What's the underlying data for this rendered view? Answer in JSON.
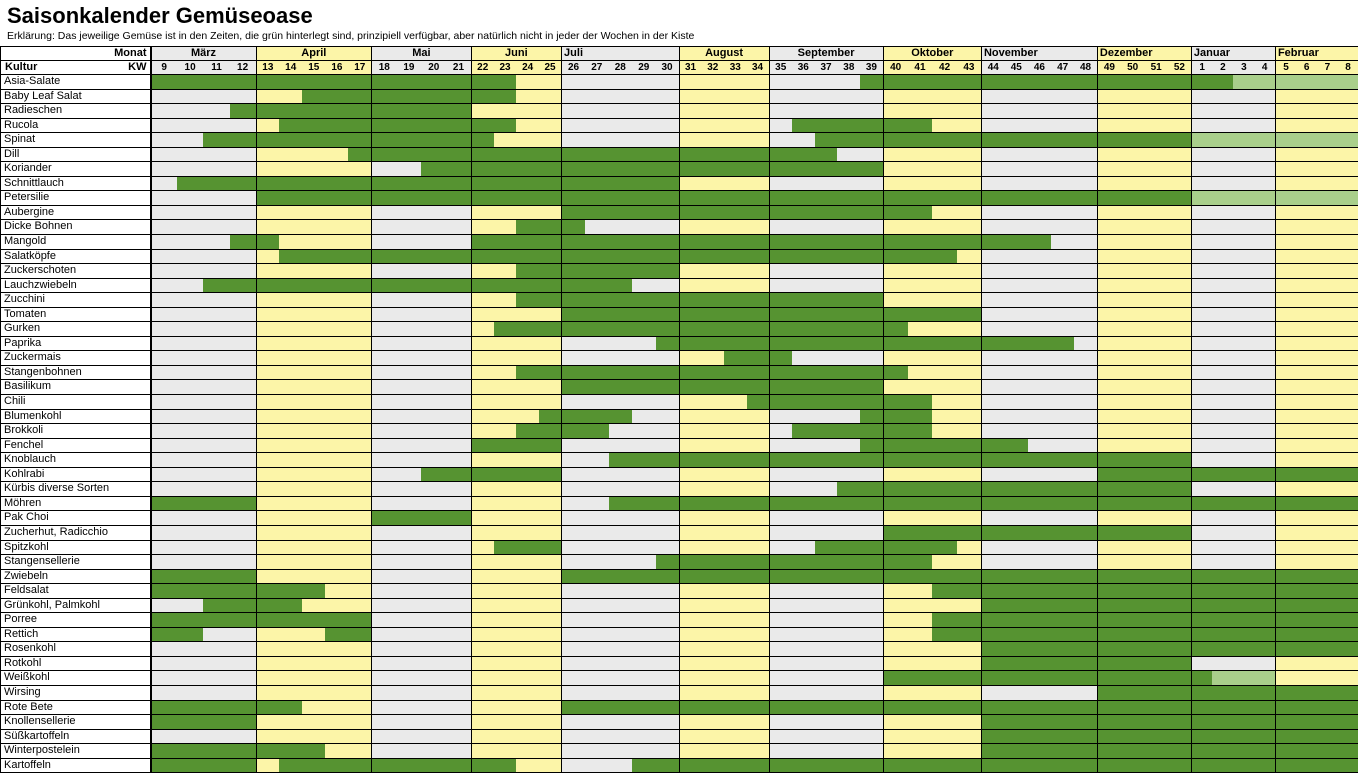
{
  "title": "Saisonkalender Gemüseoase",
  "explanation": "Erklärung: Das jeweilige Gemüse ist in den Zeiten, die grün hinterlegt sind, prinzipiell verfügbar, aber natürlich nicht in jeder der Wochen in der Kiste",
  "header": {
    "monat_label": "Monat",
    "kultur_label": "Kultur",
    "kw_label": "KW"
  },
  "colors": {
    "available_green": "#569331",
    "limited_light_green": "#a9cf8b",
    "month_yellow": "#fcf5a8",
    "month_gray": "#eaeaea"
  },
  "chart_data": {
    "type": "heatmap",
    "title": "Saisonkalender Gemüseoase",
    "unit": "Kalenderwoche (KW)",
    "cell_states": {
      "g": "#569331",
      "l": "#a9cf8b"
    },
    "months": [
      {
        "name": "März",
        "weeks": [
          9,
          10,
          11,
          12
        ],
        "tone": "gray",
        "align": "center"
      },
      {
        "name": "April",
        "weeks": [
          13,
          14,
          15,
          16,
          17
        ],
        "tone": "yellow",
        "align": "center"
      },
      {
        "name": "Mai",
        "weeks": [
          18,
          19,
          20,
          21
        ],
        "tone": "gray",
        "align": "center"
      },
      {
        "name": "Juni",
        "weeks": [
          22,
          23,
          24,
          25
        ],
        "tone": "yellow",
        "align": "center"
      },
      {
        "name": "Juli",
        "weeks": [
          26,
          27,
          28,
          29,
          30
        ],
        "tone": "gray",
        "align": "left"
      },
      {
        "name": "August",
        "weeks": [
          31,
          32,
          33,
          34
        ],
        "tone": "yellow",
        "align": "center"
      },
      {
        "name": "September",
        "weeks": [
          35,
          36,
          37,
          38,
          39
        ],
        "tone": "gray",
        "align": "center"
      },
      {
        "name": "Oktober",
        "weeks": [
          40,
          41,
          42,
          43
        ],
        "tone": "yellow",
        "align": "center"
      },
      {
        "name": "November",
        "weeks": [
          44,
          45,
          46,
          47,
          48
        ],
        "tone": "gray",
        "align": "left"
      },
      {
        "name": "Dezember",
        "weeks": [
          49,
          50,
          51,
          52
        ],
        "tone": "yellow",
        "align": "left"
      },
      {
        "name": "Januar",
        "weeks": [
          1,
          2,
          3,
          4
        ],
        "tone": "gray",
        "align": "left"
      },
      {
        "name": "Februar",
        "weeks": [
          5,
          6,
          7,
          8
        ],
        "tone": "yellow",
        "align": "left"
      }
    ],
    "rows": [
      {
        "kultur": "Asia-Salate",
        "g": [
          [
            9,
            23
          ],
          [
            39,
            2
          ]
        ],
        "l": [
          [
            3,
            8
          ]
        ]
      },
      {
        "kultur": "Baby Leaf Salat",
        "g": [
          [
            15,
            23
          ]
        ],
        "l": []
      },
      {
        "kultur": "Radieschen",
        "g": [
          [
            12,
            21
          ]
        ],
        "l": []
      },
      {
        "kultur": "Rucola",
        "g": [
          [
            14,
            23
          ],
          [
            36,
            41
          ]
        ],
        "l": []
      },
      {
        "kultur": "Spinat",
        "g": [
          [
            11,
            22
          ],
          [
            37,
            52
          ]
        ],
        "l": [
          [
            1,
            8
          ]
        ]
      },
      {
        "kultur": "Dill",
        "g": [
          [
            17,
            37
          ]
        ],
        "l": []
      },
      {
        "kultur": "Koriander",
        "g": [
          [
            20,
            39
          ]
        ],
        "l": []
      },
      {
        "kultur": "Schnittlauch",
        "g": [
          [
            10,
            30
          ]
        ],
        "l": []
      },
      {
        "kultur": "Petersilie",
        "g": [
          [
            13,
            52
          ]
        ],
        "l": [
          [
            1,
            8
          ]
        ]
      },
      {
        "kultur": "Aubergine",
        "g": [
          [
            26,
            41
          ]
        ],
        "l": []
      },
      {
        "kultur": "Dicke Bohnen",
        "g": [
          [
            24,
            26
          ]
        ],
        "l": []
      },
      {
        "kultur": "Mangold",
        "g": [
          [
            12,
            13
          ],
          [
            22,
            46
          ]
        ],
        "l": []
      },
      {
        "kultur": "Salatköpfe",
        "g": [
          [
            14,
            42
          ]
        ],
        "l": []
      },
      {
        "kultur": "Zuckerschoten",
        "g": [
          [
            24,
            30
          ]
        ],
        "l": []
      },
      {
        "kultur": "Lauchzwiebeln",
        "g": [
          [
            11,
            28
          ]
        ],
        "l": []
      },
      {
        "kultur": "Zucchini",
        "g": [
          [
            24,
            39
          ]
        ],
        "l": []
      },
      {
        "kultur": "Tomaten",
        "g": [
          [
            26,
            43
          ]
        ],
        "l": []
      },
      {
        "kultur": "Gurken",
        "g": [
          [
            23,
            40
          ]
        ],
        "l": []
      },
      {
        "kultur": "Paprika",
        "g": [
          [
            30,
            47
          ]
        ],
        "l": []
      },
      {
        "kultur": "Zuckermais",
        "g": [
          [
            33,
            35
          ]
        ],
        "l": []
      },
      {
        "kultur": "Stangenbohnen",
        "g": [
          [
            24,
            40
          ]
        ],
        "l": []
      },
      {
        "kultur": "Basilikum",
        "g": [
          [
            26,
            39
          ]
        ],
        "l": []
      },
      {
        "kultur": "Chili",
        "g": [
          [
            34,
            41
          ]
        ],
        "l": []
      },
      {
        "kultur": "Blumenkohl",
        "g": [
          [
            25,
            28
          ],
          [
            39,
            41
          ]
        ],
        "l": []
      },
      {
        "kultur": "Brokkoli",
        "g": [
          [
            24,
            27
          ],
          [
            36,
            41
          ]
        ],
        "l": []
      },
      {
        "kultur": "Fenchel",
        "g": [
          [
            22,
            25
          ],
          [
            39,
            45
          ]
        ],
        "l": []
      },
      {
        "kultur": "Knoblauch",
        "g": [
          [
            28,
            52
          ]
        ],
        "l": []
      },
      {
        "kultur": "Kohlrabi",
        "g": [
          [
            20,
            25
          ],
          [
            49,
            8
          ]
        ],
        "l": []
      },
      {
        "kultur": "Kürbis diverse Sorten",
        "g": [
          [
            38,
            52
          ]
        ],
        "l": []
      },
      {
        "kultur": "Möhren",
        "g": [
          [
            9,
            12
          ],
          [
            28,
            8
          ]
        ],
        "l": []
      },
      {
        "kultur": "Pak Choi",
        "g": [
          [
            18,
            21
          ]
        ],
        "l": []
      },
      {
        "kultur": "Zucherhut, Radicchio",
        "g": [
          [
            40,
            52
          ]
        ],
        "l": []
      },
      {
        "kultur": "Spitzkohl",
        "g": [
          [
            23,
            25
          ],
          [
            37,
            42
          ]
        ],
        "l": []
      },
      {
        "kultur": "Stangensellerie",
        "g": [
          [
            30,
            41
          ]
        ],
        "l": []
      },
      {
        "kultur": "Zwiebeln",
        "g": [
          [
            9,
            12
          ],
          [
            26,
            8
          ]
        ],
        "l": []
      },
      {
        "kultur": "Feldsalat",
        "g": [
          [
            9,
            15
          ],
          [
            42,
            8
          ]
        ],
        "l": []
      },
      {
        "kultur": "Grünkohl, Palmkohl",
        "g": [
          [
            11,
            14
          ],
          [
            44,
            8
          ]
        ],
        "l": []
      },
      {
        "kultur": "Porree",
        "g": [
          [
            9,
            17
          ],
          [
            42,
            8
          ]
        ],
        "l": []
      },
      {
        "kultur": "Rettich",
        "g": [
          [
            9,
            10
          ],
          [
            16,
            17
          ],
          [
            42,
            8
          ]
        ],
        "l": []
      },
      {
        "kultur": "Rosenkohl",
        "g": [
          [
            44,
            8
          ]
        ],
        "l": []
      },
      {
        "kultur": "Rotkohl",
        "g": [
          [
            44,
            52
          ]
        ],
        "l": []
      },
      {
        "kultur": "Weißkohl",
        "g": [
          [
            40,
            1
          ]
        ],
        "l": [
          [
            2,
            4
          ]
        ]
      },
      {
        "kultur": "Wirsing",
        "g": [
          [
            49,
            8
          ]
        ],
        "l": []
      },
      {
        "kultur": "Rote Bete",
        "g": [
          [
            9,
            14
          ],
          [
            26,
            8
          ]
        ],
        "l": []
      },
      {
        "kultur": "Knollensellerie",
        "g": [
          [
            9,
            12
          ],
          [
            44,
            8
          ]
        ],
        "l": []
      },
      {
        "kultur": "Süßkartoffeln",
        "g": [
          [
            44,
            8
          ]
        ],
        "l": []
      },
      {
        "kultur": "Winterpostelein",
        "g": [
          [
            9,
            15
          ],
          [
            44,
            8
          ]
        ],
        "l": []
      },
      {
        "kultur": "Kartoffeln",
        "g": [
          [
            9,
            12
          ],
          [
            14,
            23
          ],
          [
            29,
            8
          ]
        ],
        "l": []
      }
    ]
  }
}
